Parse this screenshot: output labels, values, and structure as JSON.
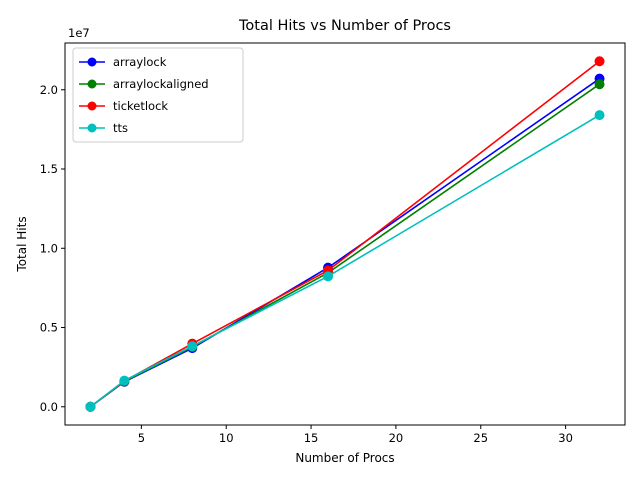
{
  "chart_data": {
    "type": "line",
    "title": "Total Hits vs Number of Procs",
    "xlabel": "Number of Procs",
    "ylabel": "Total Hits",
    "y_offset_label": "1e7",
    "xlim": [
      0.5,
      33.5
    ],
    "ylim": [
      -1150000,
      22950000
    ],
    "x_ticks": [
      5,
      10,
      15,
      20,
      25,
      30
    ],
    "x_tick_labels": [
      "5",
      "10",
      "15",
      "20",
      "25",
      "30"
    ],
    "y_ticks": [
      0,
      5000000,
      10000000,
      15000000,
      20000000
    ],
    "y_tick_labels": [
      "0.0",
      "0.5",
      "1.0",
      "1.5",
      "2.0"
    ],
    "grid": false,
    "legend_position": "top-left",
    "x": [
      2,
      4,
      8,
      16,
      32
    ],
    "series": [
      {
        "name": "arraylock",
        "color": "#0000ff",
        "values": [
          0,
          1580000,
          3700000,
          8780000,
          20700000
        ]
      },
      {
        "name": "arraylockaligned",
        "color": "#008000",
        "values": [
          0,
          1600000,
          3780000,
          8450000,
          20350000
        ]
      },
      {
        "name": "ticketlock",
        "color": "#ff0000",
        "values": [
          0,
          1620000,
          3980000,
          8600000,
          21800000
        ]
      },
      {
        "name": "tts",
        "color": "#00bfbf",
        "values": [
          0,
          1650000,
          3820000,
          8230000,
          18400000
        ]
      }
    ]
  }
}
